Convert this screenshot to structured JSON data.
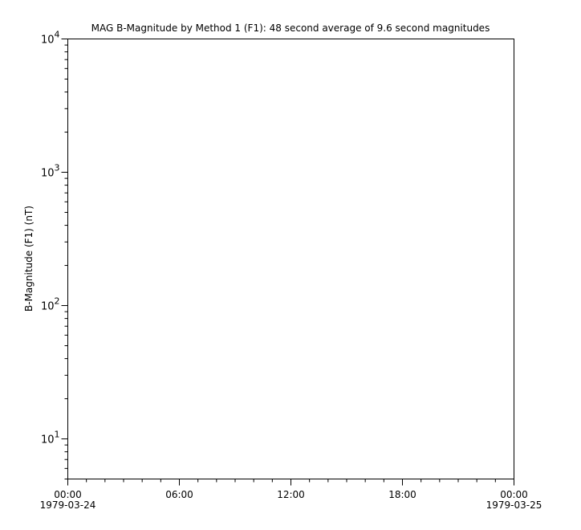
{
  "chart_data": {
    "type": "line",
    "title": "MAG  B-Magnitude by Method 1 (F1): 48 second average of 9.6 second magnitudes",
    "xlabel": "",
    "ylabel": "B-Magnitude (F1) (nT)",
    "yscale": "log",
    "ylim": [
      5,
      10000
    ],
    "xlim": [
      "1979-03-24T00:00",
      "1979-03-25T00:00"
    ],
    "x_ticks": [
      {
        "time": "00:00",
        "date": "1979-03-24",
        "hour": 0
      },
      {
        "time": "06:00",
        "date": "",
        "hour": 6
      },
      {
        "time": "12:00",
        "date": "",
        "hour": 12
      },
      {
        "time": "18:00",
        "date": "",
        "hour": 18
      },
      {
        "time": "00:00",
        "date": "1979-03-25",
        "hour": 24
      }
    ],
    "y_ticks": [
      {
        "base": "10",
        "exp": "1",
        "value": 10
      },
      {
        "base": "10",
        "exp": "2",
        "value": 100
      },
      {
        "base": "10",
        "exp": "3",
        "value": 1000
      },
      {
        "base": "10",
        "exp": "4",
        "value": 10000
      }
    ],
    "series": [],
    "grid": false,
    "colors": {
      "axis": "#000000",
      "background": "#ffffff"
    }
  }
}
